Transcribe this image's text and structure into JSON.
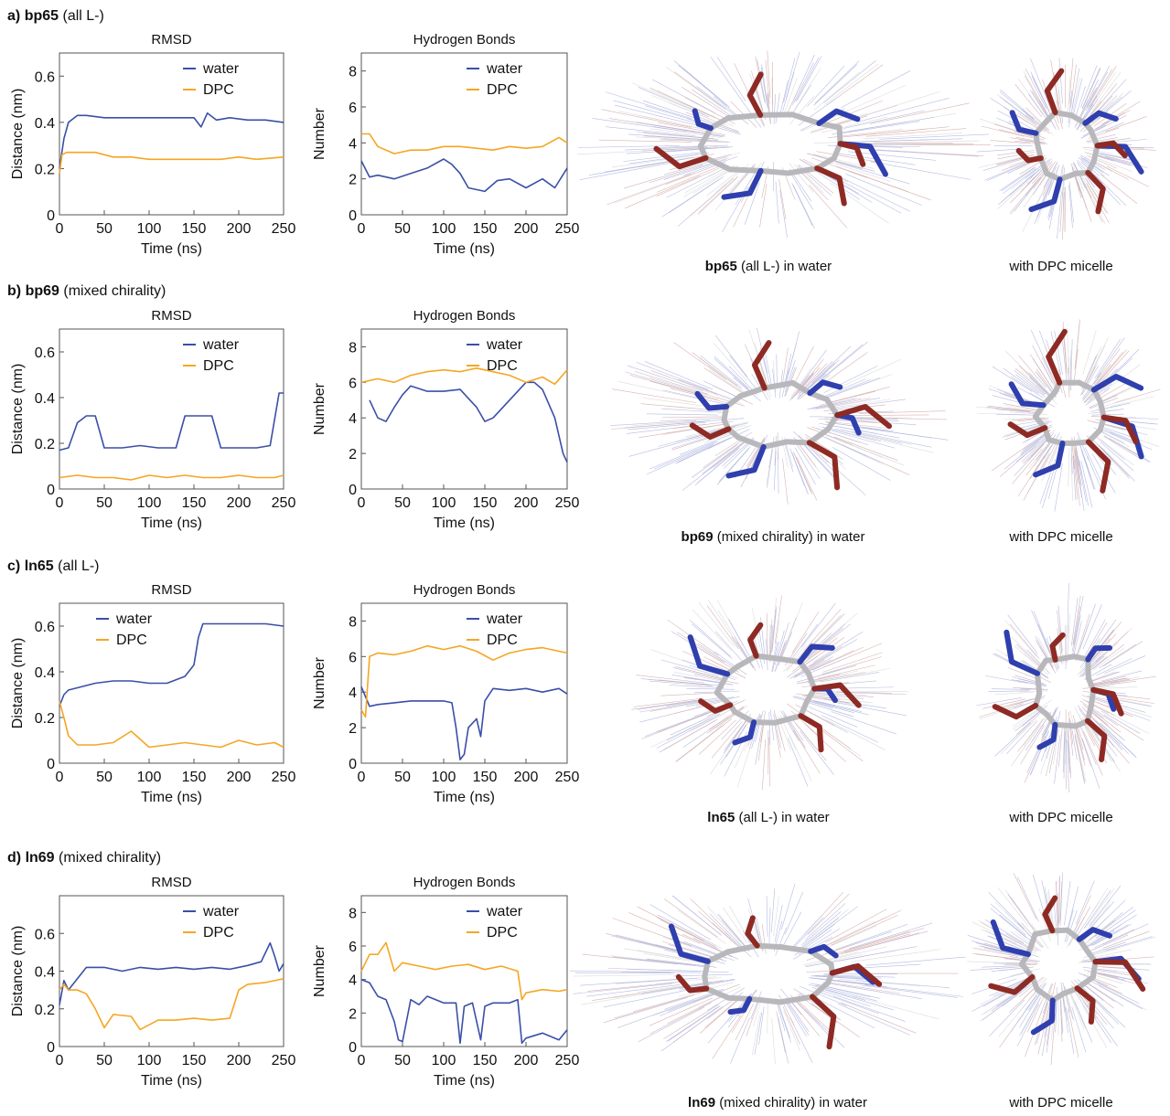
{
  "colors": {
    "water": "#3a4fa8",
    "dpc": "#f5a623",
    "basic_side_chain": "#2f3fae",
    "acidic_side_chain": "#8e2a24",
    "backbone": "#b8b8bc",
    "sulfur": "#e6c229"
  },
  "rows": [
    {
      "label": "a)",
      "name": "bp65",
      "note": "(all L-)",
      "caption_water": {
        "name": "bp65",
        "rest": "(all L-)  in water"
      },
      "caption_dpc": "with DPC micelle"
    },
    {
      "label": "b)",
      "name": "bp69",
      "note": "(mixed chirality)",
      "caption_water": {
        "name": "bp69",
        "rest": "(mixed chirality) in water"
      },
      "caption_dpc": "with DPC micelle"
    },
    {
      "label": "c)",
      "name": "ln65",
      "note": "(all L-)",
      "caption_water": {
        "name": "ln65",
        "rest": "(all L-) in water"
      },
      "caption_dpc": "with DPC micelle"
    },
    {
      "label": "d)",
      "name": "ln69",
      "note": "(mixed chirality)",
      "caption_water": {
        "name": "ln69",
        "rest": "(mixed chirality) in water"
      },
      "caption_dpc": "with DPC micelle"
    }
  ],
  "chart_data": [
    {
      "id": "a-rmsd",
      "type": "line",
      "title": "RMSD",
      "xlabel": "Time (ns)",
      "ylabel": "Distance (nm)",
      "xlim": [
        0,
        250
      ],
      "ylim": [
        0,
        0.7
      ],
      "xticks": [
        0,
        50,
        100,
        150,
        200,
        250
      ],
      "yticks": [
        0,
        0.2,
        0.4,
        0.6
      ],
      "legend_position": "top-right",
      "series": [
        {
          "name": "water",
          "color": "#3a4fa8",
          "x": [
            0,
            5,
            10,
            20,
            30,
            50,
            70,
            90,
            110,
            130,
            150,
            158,
            165,
            175,
            190,
            210,
            230,
            250
          ],
          "y": [
            0.2,
            0.33,
            0.4,
            0.43,
            0.43,
            0.42,
            0.42,
            0.42,
            0.42,
            0.42,
            0.42,
            0.38,
            0.44,
            0.41,
            0.42,
            0.41,
            0.41,
            0.4
          ]
        },
        {
          "name": "DPC",
          "color": "#f5a623",
          "x": [
            0,
            3,
            8,
            20,
            40,
            60,
            80,
            100,
            120,
            140,
            160,
            180,
            200,
            220,
            250
          ],
          "y": [
            0.18,
            0.26,
            0.27,
            0.27,
            0.27,
            0.25,
            0.25,
            0.24,
            0.24,
            0.24,
            0.24,
            0.24,
            0.25,
            0.24,
            0.25
          ]
        }
      ]
    },
    {
      "id": "a-hb",
      "type": "line",
      "title": "Hydrogen Bonds",
      "xlabel": "Time (ns)",
      "ylabel": "Number",
      "xlim": [
        0,
        250
      ],
      "ylim": [
        0,
        9
      ],
      "xticks": [
        0,
        50,
        100,
        150,
        200,
        250
      ],
      "yticks": [
        0,
        2,
        4,
        6,
        8
      ],
      "legend_position": "top-right",
      "series": [
        {
          "name": "water",
          "color": "#3a4fa8",
          "x": [
            0,
            10,
            20,
            40,
            60,
            80,
            100,
            110,
            120,
            130,
            150,
            165,
            180,
            200,
            220,
            235,
            250
          ],
          "y": [
            3,
            2.1,
            2.2,
            2.0,
            2.3,
            2.6,
            3.1,
            2.8,
            2.3,
            1.5,
            1.3,
            1.9,
            2.0,
            1.5,
            2.0,
            1.5,
            2.6
          ]
        },
        {
          "name": "DPC",
          "color": "#f5a623",
          "x": [
            0,
            10,
            20,
            40,
            60,
            80,
            100,
            120,
            140,
            160,
            180,
            200,
            220,
            240,
            250
          ],
          "y": [
            4.5,
            4.5,
            3.8,
            3.4,
            3.6,
            3.6,
            3.8,
            3.8,
            3.7,
            3.6,
            3.8,
            3.7,
            3.8,
            4.3,
            4.0
          ]
        }
      ]
    },
    {
      "id": "b-rmsd",
      "type": "line",
      "title": "RMSD",
      "xlabel": "Time (ns)",
      "ylabel": "Distance (nm)",
      "xlim": [
        0,
        250
      ],
      "ylim": [
        0,
        0.7
      ],
      "xticks": [
        0,
        50,
        100,
        150,
        200,
        250
      ],
      "yticks": [
        0,
        0.2,
        0.4,
        0.6
      ],
      "legend_position": "top-right",
      "series": [
        {
          "name": "water",
          "color": "#3a4fa8",
          "x": [
            0,
            10,
            20,
            30,
            40,
            50,
            70,
            90,
            110,
            130,
            140,
            160,
            170,
            180,
            200,
            220,
            235,
            245,
            250
          ],
          "y": [
            0.17,
            0.18,
            0.29,
            0.32,
            0.32,
            0.18,
            0.18,
            0.19,
            0.18,
            0.18,
            0.32,
            0.32,
            0.32,
            0.18,
            0.18,
            0.18,
            0.19,
            0.42,
            0.42
          ]
        },
        {
          "name": "DPC",
          "color": "#f5a623",
          "x": [
            0,
            20,
            40,
            60,
            80,
            100,
            120,
            140,
            160,
            180,
            200,
            220,
            240,
            250
          ],
          "y": [
            0.05,
            0.06,
            0.05,
            0.05,
            0.04,
            0.06,
            0.05,
            0.06,
            0.05,
            0.05,
            0.06,
            0.05,
            0.05,
            0.06
          ]
        }
      ]
    },
    {
      "id": "b-hb",
      "type": "line",
      "title": "Hydrogen Bonds",
      "xlabel": "Time (ns)",
      "ylabel": "Number",
      "xlim": [
        0,
        250
      ],
      "ylim": [
        0,
        9
      ],
      "xticks": [
        0,
        50,
        100,
        150,
        200,
        250
      ],
      "yticks": [
        0,
        2,
        4,
        6,
        8
      ],
      "legend_position": "top-right",
      "series": [
        {
          "name": "water",
          "color": "#3a4fa8",
          "x": [
            10,
            20,
            30,
            40,
            50,
            60,
            80,
            100,
            120,
            140,
            150,
            160,
            180,
            200,
            210,
            220,
            235,
            245,
            250
          ],
          "y": [
            5.0,
            4.0,
            3.8,
            4.6,
            5.3,
            5.8,
            5.5,
            5.5,
            5.6,
            4.6,
            3.8,
            4.0,
            5.0,
            6.0,
            6.0,
            5.6,
            4.0,
            2.0,
            1.5
          ]
        },
        {
          "name": "DPC",
          "color": "#f5a623",
          "x": [
            0,
            20,
            40,
            60,
            80,
            100,
            120,
            140,
            160,
            180,
            200,
            220,
            235,
            250
          ],
          "y": [
            6.0,
            6.2,
            6.0,
            6.4,
            6.6,
            6.7,
            6.6,
            6.8,
            6.6,
            6.4,
            6.0,
            6.3,
            5.9,
            6.7
          ]
        }
      ]
    },
    {
      "id": "c-rmsd",
      "type": "line",
      "title": "RMSD",
      "xlabel": "Time (ns)",
      "ylabel": "Distance (nm)",
      "xlim": [
        0,
        250
      ],
      "ylim": [
        0,
        0.7
      ],
      "xticks": [
        0,
        50,
        100,
        150,
        200,
        250
      ],
      "yticks": [
        0,
        0.2,
        0.4,
        0.6
      ],
      "legend_position": "top-left",
      "series": [
        {
          "name": "water",
          "color": "#3a4fa8",
          "x": [
            0,
            5,
            10,
            20,
            40,
            60,
            80,
            100,
            120,
            140,
            150,
            155,
            160,
            170,
            190,
            210,
            230,
            250
          ],
          "y": [
            0.25,
            0.3,
            0.32,
            0.33,
            0.35,
            0.36,
            0.36,
            0.35,
            0.35,
            0.38,
            0.43,
            0.55,
            0.61,
            0.61,
            0.61,
            0.61,
            0.61,
            0.6
          ]
        },
        {
          "name": "DPC",
          "color": "#f5a623",
          "x": [
            0,
            5,
            10,
            20,
            40,
            60,
            80,
            100,
            120,
            140,
            160,
            180,
            200,
            220,
            240,
            250
          ],
          "y": [
            0.27,
            0.2,
            0.12,
            0.08,
            0.08,
            0.09,
            0.14,
            0.07,
            0.08,
            0.09,
            0.08,
            0.07,
            0.1,
            0.08,
            0.09,
            0.07
          ]
        }
      ]
    },
    {
      "id": "c-hb",
      "type": "line",
      "title": "Hydrogen Bonds",
      "xlabel": "Time (ns)",
      "ylabel": "Number",
      "xlim": [
        0,
        250
      ],
      "ylim": [
        0,
        9
      ],
      "xticks": [
        0,
        50,
        100,
        150,
        200,
        250
      ],
      "yticks": [
        0,
        2,
        4,
        6,
        8
      ],
      "legend_position": "top-right",
      "series": [
        {
          "name": "water",
          "color": "#3a4fa8",
          "x": [
            0,
            10,
            20,
            40,
            60,
            80,
            100,
            110,
            115,
            120,
            125,
            130,
            140,
            145,
            150,
            160,
            180,
            200,
            220,
            240,
            250
          ],
          "y": [
            4.3,
            3.2,
            3.3,
            3.4,
            3.5,
            3.5,
            3.5,
            3.4,
            2.0,
            0.2,
            0.5,
            2.0,
            2.5,
            1.5,
            3.5,
            4.2,
            4.1,
            4.2,
            4.0,
            4.2,
            3.9
          ]
        },
        {
          "name": "DPC",
          "color": "#f5a623",
          "x": [
            0,
            5,
            10,
            20,
            40,
            60,
            80,
            100,
            120,
            140,
            160,
            180,
            200,
            220,
            240,
            250
          ],
          "y": [
            3.0,
            2.6,
            6.0,
            6.2,
            6.1,
            6.3,
            6.6,
            6.4,
            6.6,
            6.3,
            5.8,
            6.2,
            6.4,
            6.5,
            6.3,
            6.2
          ]
        }
      ]
    },
    {
      "id": "d-rmsd",
      "type": "line",
      "title": "RMSD",
      "xlabel": "Time (ns)",
      "ylabel": "Distance (nm)",
      "xlim": [
        0,
        250
      ],
      "ylim": [
        0,
        0.8
      ],
      "xticks": [
        0,
        50,
        100,
        150,
        200,
        250
      ],
      "yticks": [
        0,
        0.2,
        0.4,
        0.6
      ],
      "legend_position": "top-right",
      "series": [
        {
          "name": "water",
          "color": "#3a4fa8",
          "x": [
            0,
            5,
            10,
            20,
            30,
            50,
            70,
            90,
            110,
            130,
            150,
            170,
            190,
            210,
            225,
            235,
            240,
            245,
            250
          ],
          "y": [
            0.22,
            0.35,
            0.3,
            0.36,
            0.42,
            0.42,
            0.4,
            0.42,
            0.41,
            0.42,
            0.41,
            0.42,
            0.41,
            0.43,
            0.45,
            0.55,
            0.48,
            0.4,
            0.44
          ]
        },
        {
          "name": "DPC",
          "color": "#f5a623",
          "x": [
            0,
            5,
            10,
            20,
            30,
            40,
            50,
            60,
            80,
            90,
            110,
            130,
            150,
            170,
            190,
            200,
            210,
            230,
            250
          ],
          "y": [
            0.3,
            0.33,
            0.3,
            0.3,
            0.28,
            0.2,
            0.1,
            0.17,
            0.16,
            0.09,
            0.14,
            0.14,
            0.15,
            0.14,
            0.15,
            0.3,
            0.33,
            0.34,
            0.36
          ]
        }
      ]
    },
    {
      "id": "d-hb",
      "type": "line",
      "title": "Hydrogen Bonds",
      "xlabel": "Time (ns)",
      "ylabel": "Number",
      "xlim": [
        0,
        250
      ],
      "ylim": [
        0,
        9
      ],
      "xticks": [
        0,
        50,
        100,
        150,
        200,
        250
      ],
      "yticks": [
        0,
        2,
        4,
        6,
        8
      ],
      "legend_position": "top-right",
      "series": [
        {
          "name": "water",
          "color": "#3a4fa8",
          "x": [
            0,
            10,
            20,
            30,
            40,
            45,
            50,
            60,
            70,
            80,
            100,
            115,
            120,
            125,
            135,
            145,
            150,
            160,
            180,
            190,
            195,
            200,
            220,
            240,
            250
          ],
          "y": [
            4.0,
            3.8,
            3.0,
            2.8,
            1.5,
            0.4,
            0.3,
            2.8,
            2.5,
            3.0,
            2.6,
            2.6,
            0.2,
            2.4,
            2.6,
            0.4,
            2.4,
            2.6,
            2.6,
            2.8,
            0.2,
            0.5,
            0.8,
            0.4,
            1.0
          ]
        },
        {
          "name": "DPC",
          "color": "#f5a623",
          "x": [
            0,
            10,
            20,
            30,
            40,
            50,
            70,
            90,
            110,
            130,
            150,
            170,
            190,
            195,
            200,
            220,
            240,
            250
          ],
          "y": [
            4.5,
            5.5,
            5.5,
            6.2,
            4.5,
            5.0,
            4.8,
            4.6,
            4.8,
            4.9,
            4.6,
            4.8,
            4.5,
            2.8,
            3.2,
            3.4,
            3.3,
            3.4
          ]
        }
      ]
    }
  ]
}
